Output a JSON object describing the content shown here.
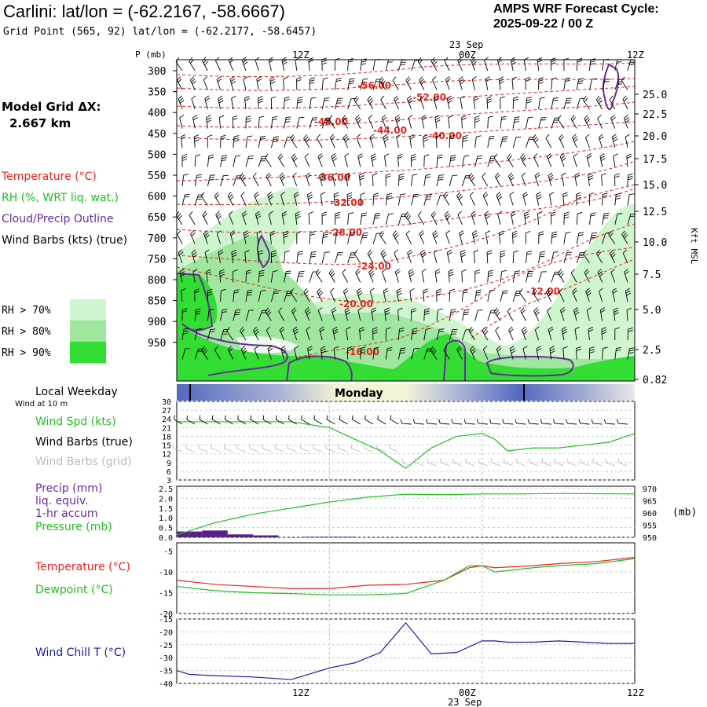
{
  "header": {
    "title": "Carlini:  lat/lon = (-62.2167, -58.6667)",
    "subtitle": "Grid Point (565, 92) lat/lon = (-62.2177, -58.6457)",
    "cycle_line1": "AMPS WRF Forecast Cycle:",
    "cycle_line2": "2025-09-22 / 00  Z"
  },
  "model_grid": {
    "label": "Model Grid ΔX:",
    "value": "2.667 km"
  },
  "legend": {
    "temperature": "Temperature (°C)",
    "rh": "RH (%, WRT liq. wat.)",
    "cloud": "Cloud/Precip Outline",
    "wind": "Wind Barbs (kts) (true)",
    "rh70": "RH > 70%",
    "rh80": "RH > 80%",
    "rh90": "RH > 90%",
    "local_weekday": "Local Weekday",
    "wind_10m": "Wind at 10 m",
    "wind_spd": "Wind Spd (kts)",
    "wind_barbs_true": "Wind Barbs (true)",
    "wind_barbs_grid": "Wind Barbs (grid)",
    "precip1": "Precip (mm)",
    "precip2": "liq. equiv.",
    "precip3": "1-hr accum",
    "pressure": "Pressure (mb)",
    "pressure_unit": "(mb)",
    "temp2": "Temperature (°C)",
    "dewpoint": "Dewpoint (°C)",
    "windchill": "Wind Chill T (°C)"
  },
  "colors": {
    "temperature": "#e8231f",
    "rh": "#20c020",
    "cloud": "#6a2a9a",
    "barbs_grid": "#bcbcbc",
    "windchill": "#1a1aa8",
    "rh70": "#cff5cf",
    "rh80": "#9fe69f",
    "rh90": "#33dd33"
  },
  "time_axis": {
    "date_top": "23 Sep",
    "date_bottom": "23 Sep",
    "ticks": [
      "12Z",
      "00Z",
      "12Z"
    ],
    "weekday": "Monday"
  },
  "chart_data": [
    {
      "type": "heatmap",
      "name": "cross-section",
      "ylabel": "P (mb)",
      "ylabel_right": "Kft MSL",
      "pressure_levels": [
        "300",
        "350",
        "400",
        "450",
        "500",
        "550",
        "600",
        "650",
        "700",
        "750",
        "800",
        "850",
        "900",
        "950"
      ],
      "height_labels": [
        "25.0",
        "22.5",
        "20.0",
        "17.5",
        "15.0",
        "12.5",
        "10.0",
        "7.5",
        "5.0",
        "2.5",
        "0.82"
      ],
      "temperature_contours": [
        "-56.00",
        "-52.00",
        "-48.00",
        "-44.00",
        "-40.00",
        "-36.00",
        "-32.00",
        "-28.00",
        "-24.00",
        "-20.00",
        "-16.00",
        "-12.00"
      ]
    },
    {
      "type": "line",
      "name": "wind speed",
      "yticks": [
        "30",
        "27",
        "24",
        "21",
        "18",
        "15",
        "12",
        "9",
        "6",
        "3"
      ],
      "ylim": [
        3,
        30
      ],
      "x_hours": [
        0,
        3,
        6,
        9,
        12,
        14,
        16,
        18,
        20,
        22,
        24,
        25,
        26,
        28,
        30,
        32,
        34,
        36
      ],
      "series": [
        {
          "name": "Wind Spd (kts)",
          "values": [
            23,
            23,
            23,
            23,
            21,
            17,
            13,
            7,
            14,
            18,
            19,
            17,
            13,
            14,
            14,
            15,
            16,
            19
          ]
        }
      ]
    },
    {
      "type": "line",
      "name": "precip and pressure",
      "yticks_left": [
        "2.5",
        "2.0",
        "1.5",
        "1.0",
        "0.5",
        "0.0"
      ],
      "yticks_right": [
        "970",
        "965",
        "960",
        "955",
        "950"
      ],
      "precip_hours": [
        0,
        1,
        2,
        3,
        4,
        5,
        6,
        7,
        10,
        11,
        12,
        13
      ],
      "precip_values": [
        0.3,
        0.3,
        0.35,
        0.35,
        0.15,
        0.15,
        0.1,
        0.1,
        0.03,
        0.03,
        0.03,
        0.03
      ],
      "pressure_hours": [
        0,
        3,
        6,
        9,
        12,
        15,
        18,
        21,
        24,
        27,
        30,
        33,
        36
      ],
      "pressure_values": [
        951,
        956,
        959.5,
        962,
        964.5,
        966.5,
        967.7,
        967.5,
        967.8,
        967.8,
        968,
        967.9,
        967.8
      ]
    },
    {
      "type": "line",
      "name": "temperature and dewpoint",
      "yticks": [
        "-5",
        "-10",
        "-15",
        "-20"
      ],
      "ylim": [
        -20,
        -3
      ],
      "x_hours": [
        0,
        3,
        6,
        9,
        12,
        15,
        18,
        21,
        23,
        24,
        25,
        28,
        30,
        33,
        36
      ],
      "series": [
        {
          "name": "Temperature (°C)",
          "values": [
            -12,
            -13,
            -13.5,
            -14,
            -14,
            -13.2,
            -13,
            -12,
            -9,
            -8.5,
            -9,
            -8.5,
            -8,
            -7.5,
            -6.5
          ]
        },
        {
          "name": "Dewpoint (°C)",
          "values": [
            -13.5,
            -14.5,
            -15,
            -15.2,
            -15.5,
            -15.5,
            -15.2,
            -12,
            -8.5,
            -8.5,
            -10,
            -9,
            -8.5,
            -8,
            -6.8
          ]
        }
      ]
    },
    {
      "type": "line",
      "name": "wind chill",
      "yticks": [
        "-15",
        "-20",
        "-25",
        "-30",
        "-35",
        "-40"
      ],
      "ylim": [
        -40,
        -15
      ],
      "x_hours": [
        0,
        1,
        3,
        6,
        9,
        10,
        12,
        14,
        16,
        18,
        20,
        22,
        24,
        25,
        26,
        28,
        30,
        32,
        34,
        36
      ],
      "series": [
        {
          "name": "Wind Chill T (°C)",
          "values": [
            -35,
            -36.5,
            -37,
            -37.5,
            -38.5,
            -37,
            -34,
            -32,
            -28,
            -16.5,
            -28.5,
            -28,
            -23.5,
            -23.5,
            -24,
            -24,
            -23.5,
            -24,
            -24.5,
            -24.5
          ]
        }
      ]
    }
  ]
}
